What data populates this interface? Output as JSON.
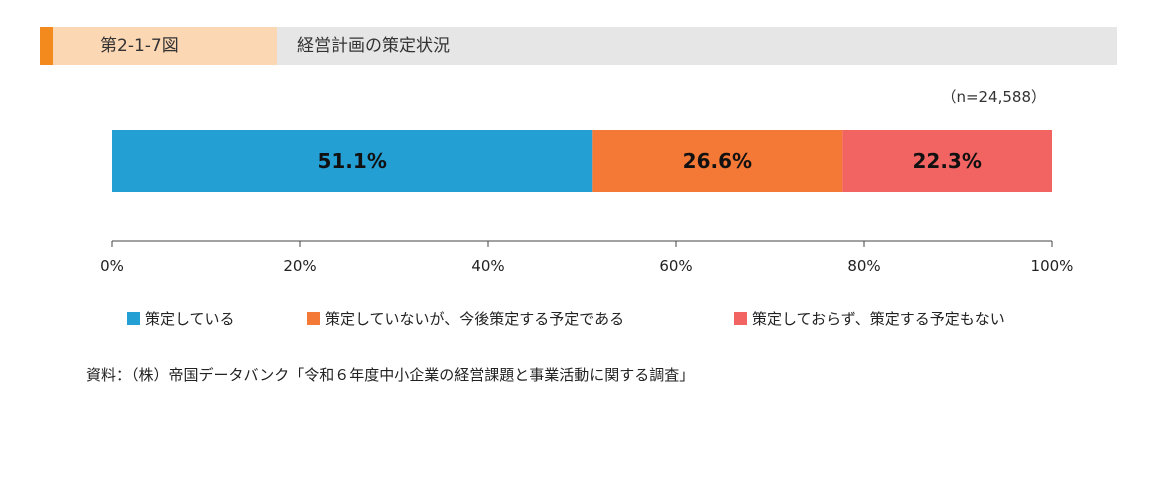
{
  "header": {
    "fig_no": "第2-1-7図",
    "title": "経営計画の策定状況"
  },
  "note": "（n=24,588）",
  "colors": {
    "accent": "#f28a1e",
    "fig_bg": "#fcd7b3",
    "header_bg": "#e6e6e6"
  },
  "chart_data": {
    "type": "bar",
    "orientation": "horizontal-stacked",
    "xlim": [
      0,
      100
    ],
    "ticks": [
      "0%",
      "20%",
      "40%",
      "60%",
      "80%",
      "100%"
    ],
    "series": [
      {
        "name": "策定している",
        "value": 51.1,
        "label": "51.1%",
        "color": "#239fd3"
      },
      {
        "name": "策定していないが、今後策定する予定である",
        "value": 26.6,
        "label": "26.6%",
        "color": "#f47836"
      },
      {
        "name": "策定しておらず、策定する予定もない",
        "value": 22.3,
        "label": "22.3%",
        "color": "#f26462"
      }
    ],
    "legend_position": "bottom"
  },
  "source": "資料：（株）帝国データバンク「令和６年度中小企業の経営課題と事業活動に関する調査」"
}
